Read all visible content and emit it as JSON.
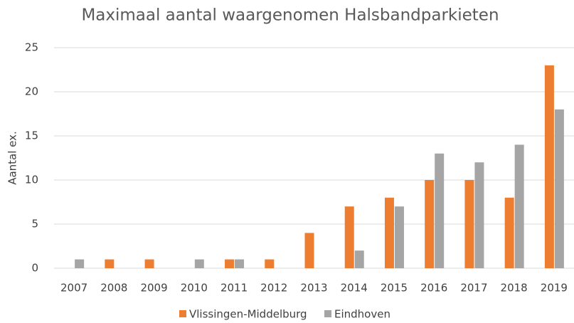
{
  "chart_data": {
    "type": "bar",
    "title": "Maximaal aantal waargenomen Halsbandparkieten",
    "y_label": "Aantal ex.",
    "categories": [
      "2007",
      "2008",
      "2009",
      "2010",
      "2011",
      "2012",
      "2013",
      "2014",
      "2015",
      "2016",
      "2017",
      "2018",
      "2019"
    ],
    "series": [
      {
        "name": "Vlissingen-Middelburg",
        "color": "#ed7d31",
        "values": [
          0,
          1,
          1,
          0,
          1,
          1,
          4,
          7,
          8,
          10,
          10,
          8,
          23
        ]
      },
      {
        "name": "Eindhoven",
        "color": "#a5a5a5",
        "values": [
          1,
          0,
          0,
          1,
          1,
          0,
          0,
          2,
          7,
          13,
          12,
          14,
          18
        ]
      }
    ],
    "ylim": [
      0,
      25
    ],
    "yticks": [
      0,
      5,
      10,
      15,
      20,
      25
    ],
    "grid": true,
    "legend": "bottom"
  }
}
